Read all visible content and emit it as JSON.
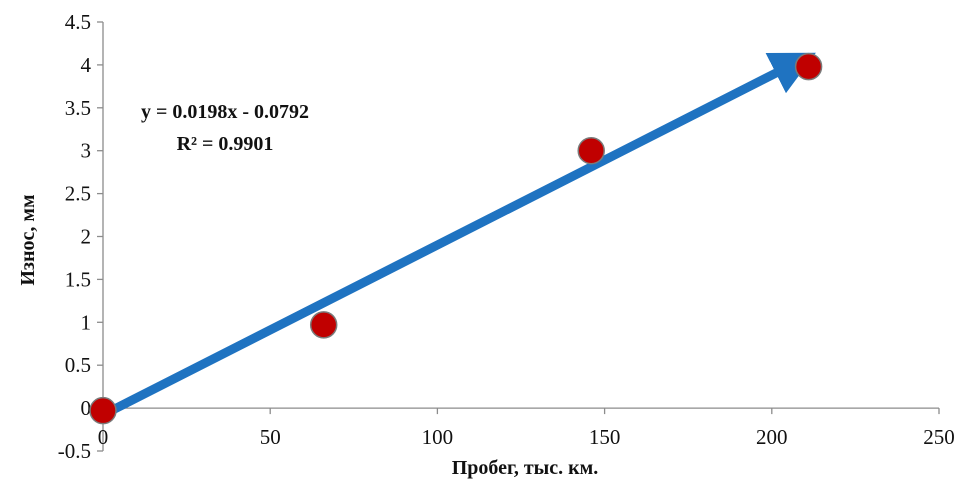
{
  "chart_data": {
    "type": "scatter",
    "title": "",
    "xlabel": "Пробег, тыс. км.",
    "ylabel": "Износ, мм",
    "xlim": [
      0,
      250
    ],
    "ylim": [
      -0.5,
      4.5
    ],
    "x_ticks": [
      0,
      50,
      100,
      150,
      200,
      250
    ],
    "y_ticks": [
      -0.5,
      0,
      0.5,
      1,
      1.5,
      2,
      2.5,
      3,
      3.5,
      4,
      4.5
    ],
    "x_tick_labels": [
      "0",
      "50",
      "100",
      "150",
      "200",
      "250"
    ],
    "y_tick_labels": [
      "-0.5",
      "0",
      "0.5",
      "1",
      "1.5",
      "2",
      "2.5",
      "3",
      "3.5",
      "4",
      "4.5"
    ],
    "grid": false,
    "series": [
      {
        "x": [
          0,
          66,
          146,
          211
        ],
        "y": [
          -0.03,
          0.97,
          3.0,
          3.98
        ],
        "color": "#c00000"
      }
    ],
    "trendline": {
      "slope": 0.0198,
      "intercept": -0.0792,
      "x_start": 0,
      "x_end": 211,
      "color": "#1f73c1",
      "style": "arrow"
    },
    "annotations": {
      "equation": "y = 0.0198x - 0.0792",
      "r_squared": "R² = 0.9901"
    }
  }
}
